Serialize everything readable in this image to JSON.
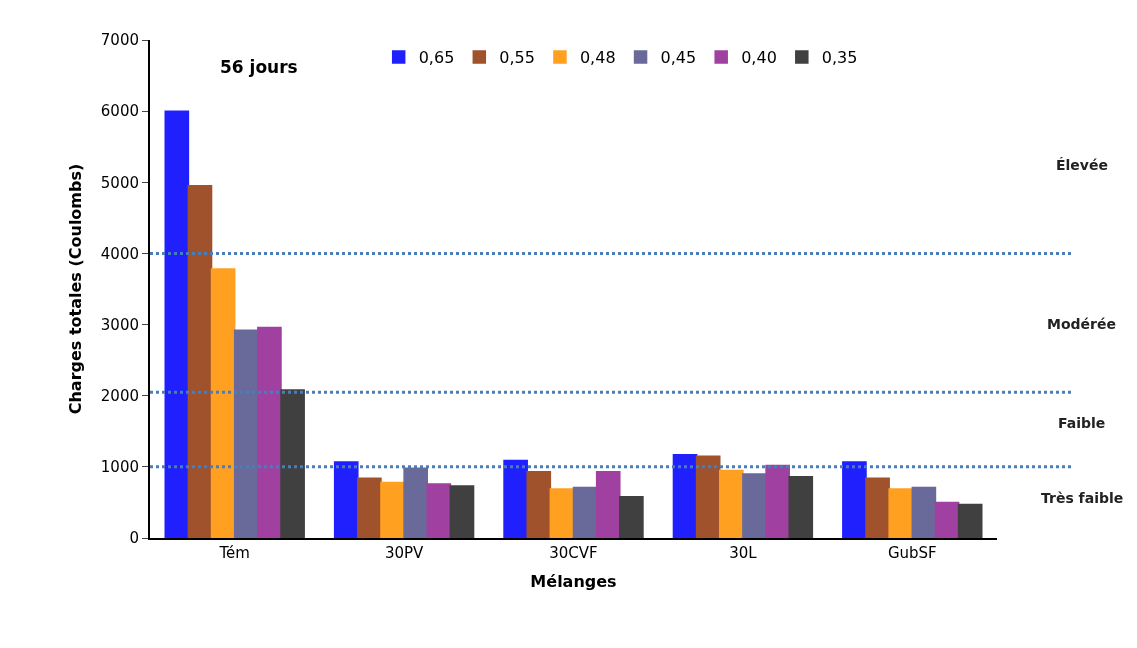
{
  "chart_data": {
    "type": "bar",
    "xlabel": "Mélanges",
    "ylabel": "Charges totales (Coulombs)",
    "categories": [
      "Tém",
      "30PV",
      "30CVF",
      "30L",
      "GubSF"
    ],
    "series": [
      {
        "name": "0,65",
        "color": "#2020ff",
        "values": [
          6000,
          1070,
          1090,
          1170,
          1070
        ]
      },
      {
        "name": "0,55",
        "color": "#a0522d",
        "values": [
          4950,
          840,
          930,
          1150,
          840
        ]
      },
      {
        "name": "0,48",
        "color": "#ffa020",
        "values": [
          3780,
          780,
          690,
          950,
          690
        ]
      },
      {
        "name": "0,45",
        "color": "#6a6a9a",
        "values": [
          2920,
          980,
          710,
          900,
          710
        ]
      },
      {
        "name": "0,40",
        "color": "#a040a0",
        "values": [
          2960,
          760,
          930,
          1020,
          500
        ]
      },
      {
        "name": "0,35",
        "color": "#404040",
        "values": [
          2080,
          730,
          580,
          860,
          470
        ]
      }
    ],
    "ylim": [
      0,
      7000
    ],
    "yticks": [
      0,
      1000,
      2000,
      3000,
      4000,
      5000,
      6000,
      7000
    ],
    "ref_lines": [
      {
        "axis": "y",
        "value": 4000,
        "color": "#4a7ebb",
        "line_style": "dotted"
      },
      {
        "axis": "y",
        "value": 2050,
        "color": "#4a7ebb",
        "line_style": "dotted"
      },
      {
        "axis": "y",
        "value": 1000,
        "color": "#4a7ebb",
        "line_style": "dotted"
      }
    ],
    "annotations": [
      "56 jours",
      "Élevée",
      "Modérée",
      "Faible",
      "Très faible"
    ],
    "legend": "top"
  }
}
